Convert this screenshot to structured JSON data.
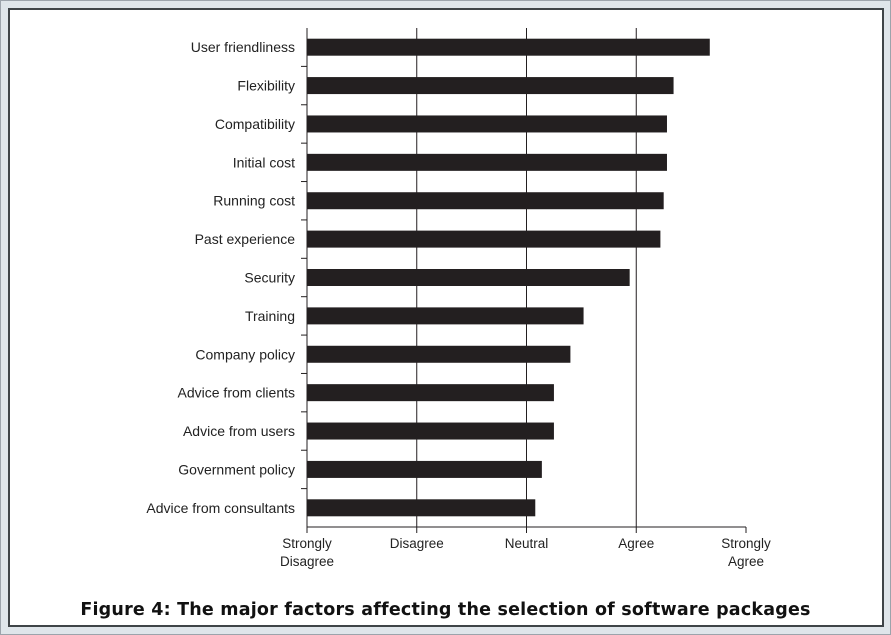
{
  "figure": {
    "caption": "Figure 4: The major factors affecting the selection of software packages"
  },
  "colors": {
    "bar": "#231f20",
    "axis": "#231f20",
    "grid": "#231f20",
    "panel_background": "#ffffff",
    "frame_background": "#dfe5ea"
  },
  "chart_data": {
    "type": "bar",
    "orientation": "horizontal",
    "title": "",
    "xlabel": "",
    "ylabel": "",
    "categories": [
      "User friendliness",
      "Flexibility",
      "Compatibility",
      "Initial cost",
      "Running cost",
      "Past experience",
      "Security",
      "Training",
      "Company policy",
      "Advice from clients",
      "Advice from users",
      "Government policy",
      "Advice from consultants"
    ],
    "values": [
      4.67,
      4.34,
      4.28,
      4.28,
      4.25,
      4.22,
      3.94,
      3.52,
      3.4,
      3.25,
      3.25,
      3.14,
      3.08
    ],
    "xlim": [
      1,
      5
    ],
    "x_tick_values": [
      1,
      2,
      3,
      4,
      5
    ],
    "x_tick_labels": [
      [
        "Strongly",
        "Disagree"
      ],
      [
        "Disagree"
      ],
      [
        "Neutral"
      ],
      [
        "Agree"
      ],
      [
        "Strongly",
        "Agree"
      ]
    ],
    "grid": "vertical lines at Disagree, Neutral, Agree",
    "legend": "none"
  }
}
